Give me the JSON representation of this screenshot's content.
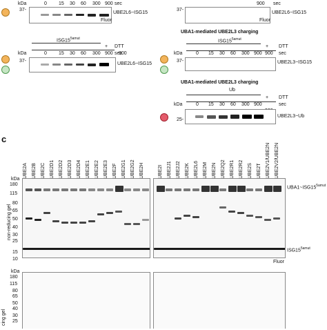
{
  "panel_top_left": {
    "kda_label": "kDa",
    "marker": "37-",
    "times": [
      "0",
      "15",
      "30",
      "60",
      "300",
      "900",
      "900"
    ],
    "unit": "sec",
    "band_label": "UBE2L6~ISG15",
    "fluor": "Fluor"
  },
  "panel_top_right": {
    "kda_label": "kDa",
    "marker": "37-",
    "times": [
      "900"
    ],
    "unit": "sec",
    "band_label": "UBE2L6~ISG15",
    "fluor": "Fluor"
  },
  "panel_mid_left": {
    "header": "ISG15",
    "header_sup": "5amut",
    "dtt_plus": "+",
    "dtt": "DTT",
    "kda_label": "kDa",
    "marker": "37-",
    "times": [
      "0",
      "15",
      "30",
      "60",
      "300",
      "900",
      "900"
    ],
    "unit": "sec",
    "band_label": "UBE2L6~ISG15"
  },
  "panel_mid_right": {
    "title": "UBA1-mediated UBE2L3 charging",
    "header": "ISG15",
    "header_sup": "5amut",
    "dtt_plus": "+",
    "dtt": "DTT",
    "kda_label": "kDa",
    "marker": "37-",
    "times": [
      "0",
      "15",
      "30",
      "60",
      "300",
      "900",
      "900"
    ],
    "unit": "sec",
    "band_label": "UBE2L3~ISG15"
  },
  "panel_ub": {
    "title": "UBA1-mediated UBE2L3 charging",
    "header": "Ub",
    "dtt_plus": "+",
    "dtt": "DTT",
    "kda_label": "kDa",
    "marker": "25-",
    "times": [
      "0",
      "15",
      "30",
      "60",
      "300",
      "900",
      "900"
    ],
    "unit": "sec",
    "band_label": "UBE2L3~Ub"
  },
  "panel_c": {
    "letter": "c",
    "left_lanes": [
      "UBE2A",
      "UBE2B",
      "UBE2C",
      "UBE2D1",
      "UBE2D2",
      "UBE2D3",
      "UBE2D4",
      "UBE2E1",
      "UBE2E2",
      "UBE2E3",
      "UBE2F",
      "UBE2G1",
      "UBE2G2",
      "UBE2H"
    ],
    "right_lanes": [
      "UBE2I",
      "UBE2J1",
      "UBE2J2",
      "UBE2K",
      "UBE2L6",
      "UBE2M",
      "UBE2N",
      "UBE2Q2",
      "UBE2R1",
      "UBE2R2",
      "UBE2S",
      "UBE2T",
      "UBE2V1/UBE2N",
      "UBE2V2/UBE2N"
    ],
    "kda_label": "kDa",
    "markers": [
      "180",
      "115",
      "80",
      "65",
      "50",
      "40",
      "30",
      "25",
      "15",
      "10"
    ],
    "ylabel": "non-reducing gel",
    "label_top": "UBA1~ISG15",
    "label_top_sup": "5amut",
    "label_bottom": "ISG15",
    "label_bottom_sup": "5amut",
    "fluor": "Fluor",
    "ylabel2": "cing gel",
    "markers2": [
      "180",
      "115",
      "80",
      "65",
      "50",
      "40",
      "30",
      "25"
    ]
  },
  "colors": {
    "orange_icon": "#f3b45b",
    "green_icon": "#c6e6c4",
    "red_icon": "#e45b6b"
  }
}
